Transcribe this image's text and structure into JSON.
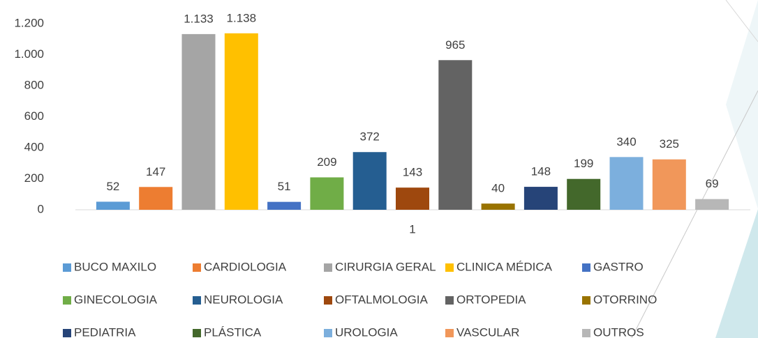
{
  "chart_data": {
    "type": "bar",
    "categories": [
      "1"
    ],
    "series": [
      {
        "name": "BUCO MAXILO",
        "color": "#5b9bd5",
        "values": [
          52
        ]
      },
      {
        "name": "CARDIOLOGIA",
        "color": "#ed7d31",
        "values": [
          147
        ]
      },
      {
        "name": "CIRURGIA GERAL",
        "color": "#a5a5a5",
        "values": [
          1133
        ],
        "value_labels": [
          "1.133"
        ]
      },
      {
        "name": "CLINICA MÉDICA",
        "color": "#ffc000",
        "values": [
          1138
        ],
        "value_labels": [
          "1.138"
        ]
      },
      {
        "name": "GASTRO",
        "color": "#4472c4",
        "values": [
          51
        ]
      },
      {
        "name": "GINECOLOGIA",
        "color": "#70ad47",
        "values": [
          209
        ]
      },
      {
        "name": "NEUROLOGIA",
        "color": "#255e91",
        "values": [
          372
        ]
      },
      {
        "name": "OFTALMOLOGIA",
        "color": "#9e480e",
        "values": [
          143
        ]
      },
      {
        "name": "ORTOPEDIA",
        "color": "#636363",
        "values": [
          965
        ]
      },
      {
        "name": "OTORRINO",
        "color": "#997300",
        "values": [
          40
        ]
      },
      {
        "name": "PEDIATRIA",
        "color": "#264478",
        "values": [
          148
        ]
      },
      {
        "name": "PLÁSTICA",
        "color": "#43682b",
        "values": [
          199
        ]
      },
      {
        "name": "UROLOGIA",
        "color": "#7cafdd",
        "values": [
          340
        ]
      },
      {
        "name": "VASCULAR",
        "color": "#f1975a",
        "values": [
          325
        ]
      },
      {
        "name": "OUTROS",
        "color": "#b7b7b7",
        "values": [
          69
        ]
      }
    ],
    "ylim": [
      0,
      1200
    ],
    "yticks": [
      0,
      200,
      400,
      600,
      800,
      {
        "value": 1000,
        "label": "1.000"
      },
      {
        "value": 1200,
        "label": "1.200"
      }
    ],
    "grid": false,
    "legend": "bottom"
  }
}
